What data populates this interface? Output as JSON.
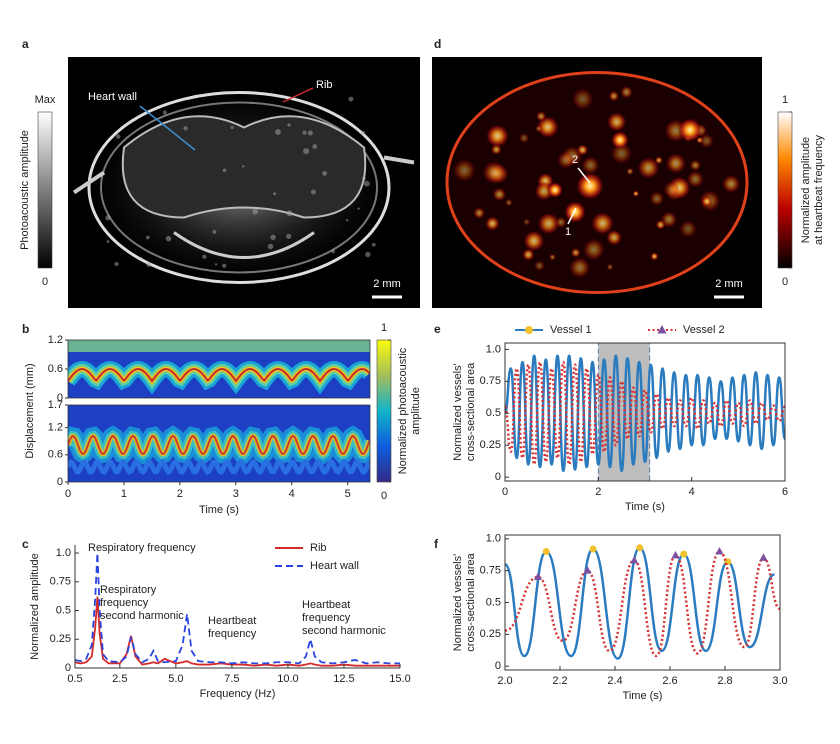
{
  "chart_data": [
    {
      "type": "image",
      "panel": "a",
      "colormap": "gray",
      "colorbar": {
        "label": "Photoacoustic amplitude",
        "ticks": [
          "Max",
          "0"
        ]
      },
      "annotations": [
        "Heart wall",
        "Rib"
      ],
      "scale_bar": "2 mm"
    },
    {
      "type": "heatmap",
      "panel": "b",
      "colormap": "parula",
      "xlim": [
        0,
        5.4
      ],
      "xticks": [
        0,
        1,
        2,
        3,
        4,
        5
      ],
      "xlabel": "Time (s)",
      "ylabel": "Displacement (mm)",
      "panels": [
        {
          "ylim": [
            0,
            1.2
          ],
          "yticks": [
            0,
            0.6,
            1.2
          ]
        },
        {
          "ylim": [
            0,
            1.7
          ],
          "yticks": [
            0,
            0.6,
            1.2,
            1.7
          ]
        }
      ],
      "colorbar": {
        "label": [
          "Normalized photoacoustic",
          "amplitude"
        ],
        "lim": [
          0,
          1
        ],
        "ticks": [
          0,
          1
        ]
      }
    },
    {
      "type": "line",
      "panel": "c",
      "xlabel": "Frequency (Hz)",
      "ylabel": "Normalized amplitude",
      "xlim": [
        0.5,
        15
      ],
      "xticks": [
        0.5,
        2.5,
        {
          "value": 5,
          "label": "5.0"
        },
        7.5,
        {
          "value": 10,
          "label": "10.0"
        },
        12.5,
        {
          "value": 15,
          "label": "15.0"
        }
      ],
      "ylim": [
        0,
        1.07
      ],
      "yticks": [
        0,
        0.25,
        0.5,
        0.75,
        {
          "value": 1,
          "label": "1.0"
        }
      ],
      "x": [
        0.5,
        0.75,
        1.0,
        1.25,
        1.4,
        1.5,
        1.6,
        1.75,
        2.0,
        2.5,
        2.8,
        3.0,
        3.2,
        3.5,
        3.8,
        4.0,
        4.2,
        4.5,
        5.0,
        5.3,
        5.5,
        5.7,
        6.0,
        6.5,
        7.0,
        7.5,
        8.0,
        8.5,
        9.0,
        9.5,
        10.0,
        10.5,
        10.8,
        11.0,
        11.2,
        11.5,
        12.0,
        12.5,
        13.0,
        13.5,
        14.0,
        14.5,
        15.0
      ],
      "series": [
        {
          "name": "Rib",
          "color": "#d42a2a",
          "dash": "solid",
          "values": [
            0.05,
            0.04,
            0.05,
            0.1,
            0.35,
            0.62,
            0.3,
            0.08,
            0.04,
            0.04,
            0.12,
            0.28,
            0.1,
            0.03,
            0.04,
            0.05,
            0.04,
            0.08,
            0.04,
            0.05,
            0.06,
            0.04,
            0.03,
            0.03,
            0.04,
            0.03,
            0.03,
            0.02,
            0.03,
            0.02,
            0.03,
            0.02,
            0.03,
            0.04,
            0.03,
            0.02,
            0.02,
            0.03,
            0.02,
            0.02,
            0.02,
            0.02,
            0.02
          ]
        },
        {
          "name": "Heart wall",
          "color": "#2a44e0",
          "dash": "dashed",
          "values": [
            0.07,
            0.06,
            0.08,
            0.2,
            0.6,
            1.0,
            0.5,
            0.12,
            0.06,
            0.05,
            0.1,
            0.27,
            0.12,
            0.05,
            0.08,
            0.15,
            0.06,
            0.05,
            0.06,
            0.2,
            0.47,
            0.15,
            0.06,
            0.05,
            0.05,
            0.04,
            0.05,
            0.04,
            0.04,
            0.05,
            0.05,
            0.04,
            0.1,
            0.25,
            0.1,
            0.05,
            0.04,
            0.05,
            0.07,
            0.04,
            0.05,
            0.04,
            0.04
          ]
        }
      ],
      "annotations": [
        [
          "Respiratory frequency"
        ],
        [
          "Respiratory",
          "frequency",
          "second harmonic"
        ],
        [
          "Heartbeat",
          "frequency"
        ],
        [
          "Heartbeat",
          "frequency",
          "second harmonic"
        ]
      ]
    },
    {
      "type": "image",
      "panel": "d",
      "colormap": "hot",
      "colorbar": {
        "label": [
          "Normalized amplitude",
          "at heartbeat frequency"
        ],
        "lim": [
          0,
          1
        ],
        "ticks": [
          0,
          1
        ]
      },
      "annotations": [
        "2",
        "1"
      ],
      "scale_bar": "2 mm"
    },
    {
      "type": "line",
      "panel": "e",
      "smooth": true,
      "xlabel": "Time (s)",
      "ylabel": [
        "Normalized vessels'",
        "cross-sectional area"
      ],
      "xlim": [
        0,
        6
      ],
      "xticks": [
        0,
        2,
        4,
        6
      ],
      "ylim": [
        -0.03,
        1.05
      ],
      "yticks": [
        0,
        0.25,
        0.5,
        0.75,
        {
          "value": 1,
          "label": "1.0"
        }
      ],
      "highlight": [
        2,
        3.1
      ],
      "x": [
        0,
        0.125,
        0.25,
        0.375,
        0.5,
        0.625,
        0.75,
        0.875,
        1,
        1.125,
        1.25,
        1.375,
        1.5,
        1.625,
        1.75,
        1.875,
        2,
        2.125,
        2.25,
        2.375,
        2.5,
        2.625,
        2.75,
        2.875,
        3,
        3.125,
        3.25,
        3.375,
        3.5,
        3.625,
        3.75,
        3.875,
        4,
        4.125,
        4.25,
        4.375,
        4.5,
        4.625,
        4.75,
        4.875,
        5,
        5.125,
        5.25,
        5.375,
        5.5,
        5.625,
        5.75,
        5.875,
        6
      ],
      "series": [
        {
          "name": "Vessel 1",
          "color": "#2b7bbf",
          "dash": "solid",
          "marker": "circle",
          "marker_color": "#f2c12e",
          "values": [
            0.5,
            0.85,
            0.15,
            0.9,
            0.1,
            0.95,
            0.08,
            0.92,
            0.1,
            0.95,
            0.05,
            0.95,
            0.06,
            0.93,
            0.08,
            0.9,
            0.1,
            0.92,
            0.08,
            0.95,
            0.05,
            0.93,
            0.1,
            0.9,
            0.12,
            0.88,
            0.15,
            0.85,
            0.2,
            0.82,
            0.22,
            0.8,
            0.25,
            0.8,
            0.25,
            0.78,
            0.3,
            0.75,
            0.3,
            0.78,
            0.28,
            0.8,
            0.25,
            0.82,
            0.22,
            0.8,
            0.25,
            0.78,
            0.3
          ]
        },
        {
          "name": "Vessel 2",
          "color": "#d63030",
          "dash": "dotted",
          "marker": "triangle",
          "marker_color": "#7d4fa0",
          "values": [
            0.55,
            0.2,
            0.85,
            0.15,
            0.88,
            0.1,
            0.9,
            0.12,
            0.85,
            0.15,
            0.9,
            0.1,
            0.88,
            0.12,
            0.85,
            0.18,
            0.8,
            0.2,
            0.78,
            0.25,
            0.75,
            0.3,
            0.7,
            0.32,
            0.68,
            0.35,
            0.65,
            0.38,
            0.62,
            0.4,
            0.6,
            0.4,
            0.62,
            0.38,
            0.6,
            0.42,
            0.58,
            0.4,
            0.6,
            0.42,
            0.58,
            0.4,
            0.6,
            0.42,
            0.58,
            0.45,
            0.56,
            0.44,
            0.55
          ]
        }
      ]
    },
    {
      "type": "line",
      "panel": "f",
      "smooth": true,
      "peak_markers": true,
      "xlabel": "Time (s)",
      "ylabel": [
        "Normalized vessels'",
        "cross-sectional area"
      ],
      "xlim": [
        2,
        3
      ],
      "xticks": [
        {
          "value": 2,
          "label": "2.0"
        },
        2.2,
        2.4,
        2.6,
        2.8,
        {
          "value": 3,
          "label": "3.0"
        }
      ],
      "ylim": [
        -0.03,
        1.03
      ],
      "yticks": [
        0,
        0.25,
        0.5,
        0.75,
        {
          "value": 1,
          "label": "1.0"
        }
      ],
      "series": [
        {
          "name": "Vessel 1",
          "color": "#2b7bbf",
          "dash": "solid",
          "marker": "circle",
          "marker_color": "#f2c12e",
          "x": [
            2.0,
            2.07,
            2.15,
            2.24,
            2.32,
            2.41,
            2.49,
            2.57,
            2.65,
            2.73,
            2.81,
            2.89,
            2.98
          ],
          "values": [
            0.8,
            0.08,
            0.9,
            0.08,
            0.92,
            0.06,
            0.93,
            0.12,
            0.88,
            0.12,
            0.82,
            0.15,
            0.72
          ]
        },
        {
          "name": "Vessel 2",
          "color": "#d63030",
          "dash": "dotted",
          "marker": "triangle",
          "marker_color": "#7d4fa0",
          "x": [
            2.0,
            2.12,
            2.21,
            2.3,
            2.38,
            2.47,
            2.55,
            2.62,
            2.7,
            2.78,
            2.87,
            2.94,
            3.0
          ],
          "values": [
            0.28,
            0.7,
            0.2,
            0.75,
            0.12,
            0.83,
            0.08,
            0.87,
            0.1,
            0.9,
            0.15,
            0.85,
            0.45
          ]
        }
      ]
    }
  ]
}
